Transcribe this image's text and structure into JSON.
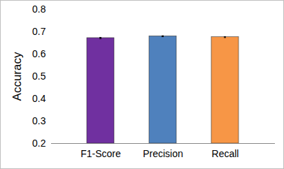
{
  "chart_data": {
    "type": "bar",
    "categories": [
      "F1-Score",
      "Precision",
      "Recall"
    ],
    "values": [
      0.672,
      0.68,
      0.676
    ],
    "errors": [
      0.003,
      0.002,
      0.002
    ],
    "colors": [
      "#7030a0",
      "#4f81bd",
      "#f79646"
    ],
    "y_label": "Accuracy",
    "ylim": [
      0.2,
      0.8
    ],
    "yticks": [
      0.2,
      0.3,
      0.4,
      0.5,
      0.6,
      0.7,
      0.8
    ],
    "grid": false
  }
}
